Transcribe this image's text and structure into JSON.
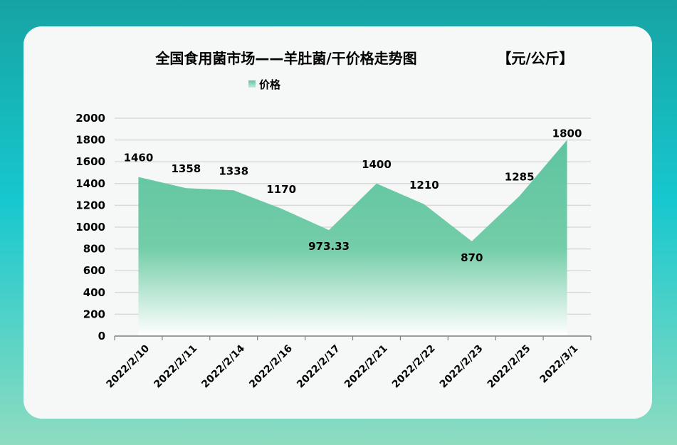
{
  "chart_data": {
    "type": "area",
    "title": "全国食用菌市场——羊肚菌/干价格走势图",
    "unit": "【元/公斤】",
    "legend": {
      "label": "价格",
      "position": "top"
    },
    "categories": [
      "2022/2/10",
      "2022/2/11",
      "2022/2/14",
      "2022/2/16",
      "2022/2/17",
      "2022/2/21",
      "2022/2/22",
      "2022/2/23",
      "2022/2/25",
      "2022/3/1"
    ],
    "series": [
      {
        "name": "价格",
        "values": [
          1460,
          1358,
          1338,
          1170,
          973.33,
          1400,
          1210,
          870,
          1285,
          1800
        ],
        "labels": [
          "1460",
          "1358",
          "1338",
          "1170",
          "973.33",
          "1400",
          "1210",
          "870",
          "1285",
          "1800"
        ]
      }
    ],
    "ylim": [
      0,
      2000
    ],
    "yticks": [
      0,
      200,
      400,
      600,
      800,
      1000,
      1200,
      1400,
      1600,
      1800,
      2000
    ],
    "grid": true,
    "colors": {
      "area_top": "#5ec4a0",
      "area_bottom": "#ffffff",
      "grid": "#d9d9d9",
      "axis": "#7f7f7f"
    }
  }
}
